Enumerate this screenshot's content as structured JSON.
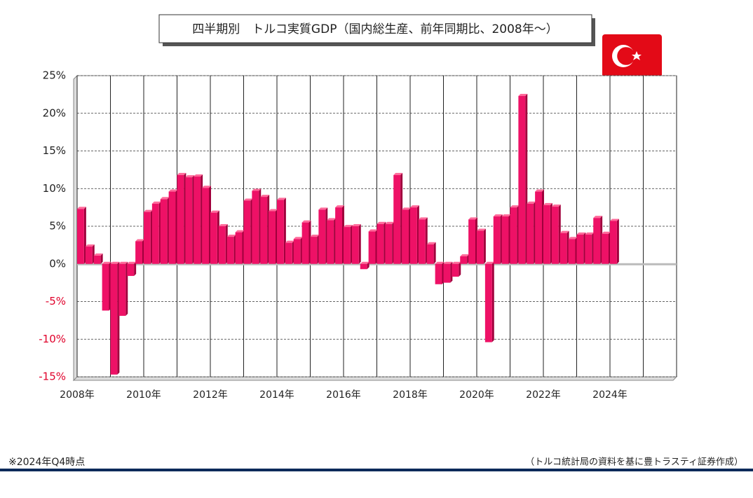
{
  "chart_data": {
    "type": "bar",
    "title": "四半期別　トルコ実質GDP（国内総生産、前年同期比、2008年～）",
    "note": "※2024年Q4時点",
    "source": "（トルコ統計局の資料を基に豊トラスティ証券作成）",
    "color": "#ee1166",
    "x": [
      2008,
      2008.25,
      2008.5,
      2008.75,
      2009,
      2009.25,
      2009.5,
      2009.75,
      2010,
      2010.25,
      2010.5,
      2010.75,
      2011,
      2011.25,
      2011.5,
      2011.75,
      2012,
      2012.25,
      2012.5,
      2012.75,
      2013,
      2013.25,
      2013.5,
      2013.75,
      2014,
      2014.25,
      2014.5,
      2014.75,
      2015,
      2015.25,
      2015.5,
      2015.75,
      2016,
      2016.25,
      2016.5,
      2016.75,
      2017,
      2017.25,
      2017.5,
      2017.75,
      2018,
      2018.25,
      2018.5,
      2018.75,
      2019,
      2019.25,
      2019.5,
      2019.75,
      2020,
      2020.25,
      2020.5,
      2020.75,
      2021,
      2021.25,
      2021.5,
      2021.75,
      2022,
      2022.25,
      2022.5,
      2022.75,
      2023,
      2023.25,
      2023.5,
      2023.75,
      2024
    ],
    "values": [
      7.3,
      2.3,
      1.1,
      -6.2,
      -14.7,
      -6.9,
      -1.6,
      3.0,
      6.9,
      8.0,
      8.6,
      9.6,
      11.8,
      11.5,
      11.6,
      10.1,
      6.8,
      5.0,
      3.6,
      4.2,
      8.4,
      9.7,
      8.9,
      7.0,
      8.5,
      2.8,
      3.3,
      5.5,
      3.6,
      7.2,
      5.8,
      7.5,
      4.9,
      5.0,
      -0.7,
      4.3,
      5.3,
      5.3,
      11.8,
      7.2,
      7.5,
      5.9,
      2.6,
      -2.7,
      -2.5,
      -1.7,
      1.0,
      5.9,
      4.4,
      -10.4,
      6.3,
      6.3,
      7.5,
      22.3,
      8.0,
      9.6,
      7.8,
      7.6,
      4.1,
      3.3,
      3.9,
      3.9,
      6.1,
      4.0,
      5.7
    ],
    "xlim": [
      2008,
      2026
    ],
    "xticks": [
      {
        "value": 2008,
        "label": "2008年"
      },
      {
        "value": 2010,
        "label": "2010年"
      },
      {
        "value": 2012,
        "label": "2012年"
      },
      {
        "value": 2014,
        "label": "2014年"
      },
      {
        "value": 2016,
        "label": "2016年"
      },
      {
        "value": 2018,
        "label": "2018年"
      },
      {
        "value": 2020,
        "label": "2020年"
      },
      {
        "value": 2022,
        "label": "2022年"
      },
      {
        "value": 2024,
        "label": "2024年"
      }
    ],
    "xminor": [
      2009,
      2011,
      2013,
      2015,
      2017,
      2019,
      2021,
      2023,
      2025,
      2026
    ],
    "ylim": [
      -15,
      25
    ],
    "yticks": [
      {
        "value": -15,
        "label": "-15%"
      },
      {
        "value": -10,
        "label": "-10%"
      },
      {
        "value": -5,
        "label": "-5%"
      },
      {
        "value": 0,
        "label": "0%"
      },
      {
        "value": 5,
        "label": "5%"
      },
      {
        "value": 10,
        "label": "10%"
      },
      {
        "value": 15,
        "label": "15%"
      },
      {
        "value": 20,
        "label": "20%"
      },
      {
        "value": 25,
        "label": "25%"
      }
    ],
    "grid": true
  }
}
